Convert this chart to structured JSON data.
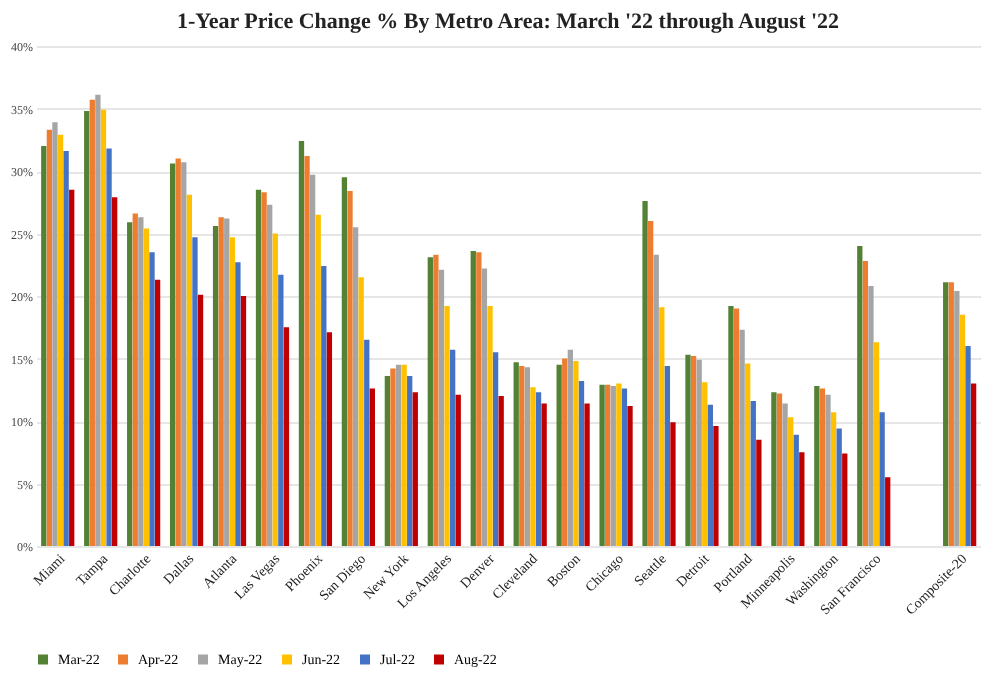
{
  "chart_data": {
    "type": "bar",
    "title": "1-Year Price Change % By Metro Area: March '22 through August '22",
    "categories": [
      "Miami",
      "Tampa",
      "Charlotte",
      "Dallas",
      "Atlanta",
      "Las Vegas",
      "Phoenix",
      "San Diego",
      "New York",
      "Los Angeles",
      "Denver",
      "Cleveland",
      "Boston",
      "Chicago",
      "Seattle",
      "Detroit",
      "Portland",
      "Minneapolis",
      "Washington",
      "San Francisco",
      null,
      "Composite-20"
    ],
    "series": [
      {
        "name": "Mar-22",
        "color": "#548235",
        "values": [
          32.0,
          34.8,
          25.9,
          30.6,
          25.6,
          28.5,
          32.4,
          29.5,
          13.6,
          23.1,
          23.6,
          14.7,
          14.5,
          12.9,
          27.6,
          15.3,
          19.2,
          12.3,
          12.8,
          24.0,
          null,
          21.1
        ]
      },
      {
        "name": "Apr-22",
        "color": "#ed7d31",
        "values": [
          33.3,
          35.7,
          26.6,
          31.0,
          26.3,
          28.3,
          31.2,
          28.4,
          14.2,
          23.3,
          23.5,
          14.4,
          15.0,
          12.9,
          26.0,
          15.2,
          19.0,
          12.2,
          12.6,
          22.8,
          null,
          21.1
        ]
      },
      {
        "name": "May-22",
        "color": "#a5a5a5",
        "values": [
          33.9,
          36.1,
          26.3,
          30.7,
          26.2,
          27.3,
          29.7,
          25.5,
          14.5,
          22.1,
          22.2,
          14.3,
          15.7,
          12.8,
          23.3,
          14.9,
          17.3,
          11.4,
          12.1,
          20.8,
          null,
          20.4
        ]
      },
      {
        "name": "Jun-22",
        "color": "#ffc000",
        "values": [
          32.9,
          34.9,
          25.4,
          28.1,
          24.7,
          25.0,
          26.5,
          21.5,
          14.5,
          19.2,
          19.2,
          12.7,
          14.8,
          13.0,
          19.1,
          13.1,
          14.6,
          10.3,
          10.7,
          16.3,
          null,
          18.5
        ]
      },
      {
        "name": "Jul-22",
        "color": "#4472c4",
        "values": [
          31.6,
          31.8,
          23.5,
          24.7,
          22.7,
          21.7,
          22.4,
          16.5,
          13.6,
          15.7,
          15.5,
          12.3,
          13.2,
          12.6,
          14.4,
          11.3,
          11.6,
          8.9,
          9.4,
          10.7,
          null,
          16.0
        ]
      },
      {
        "name": "Aug-22",
        "color": "#c00000",
        "values": [
          28.5,
          27.9,
          21.3,
          20.1,
          20.0,
          17.5,
          17.1,
          12.6,
          12.3,
          12.1,
          12.0,
          11.4,
          11.4,
          11.2,
          9.9,
          9.6,
          8.5,
          7.5,
          7.4,
          5.5,
          null,
          13.0
        ]
      }
    ],
    "ylim": [
      0,
      40
    ],
    "yticks": [
      {
        "value": 0,
        "label": "0%"
      },
      {
        "value": 5,
        "label": "5%"
      },
      {
        "value": 10,
        "label": "10%"
      },
      {
        "value": 15,
        "label": "15%"
      },
      {
        "value": 20,
        "label": "20%"
      },
      {
        "value": 25,
        "label": "25%"
      },
      {
        "value": 30,
        "label": "30%"
      },
      {
        "value": 35,
        "label": "35%"
      },
      {
        "value": 40,
        "label": "40%"
      }
    ],
    "grid": "y",
    "legend": "bottom"
  }
}
